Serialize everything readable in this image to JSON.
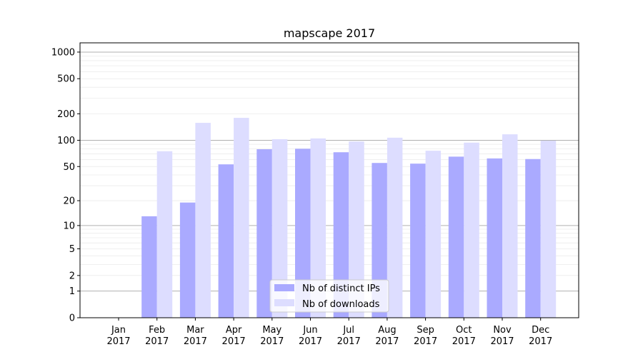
{
  "chart_data": {
    "type": "bar",
    "title": "mapscape 2017",
    "xlabel": "",
    "ylabel": "",
    "yscale": "symlog (log10(1+y))",
    "ylim": [
      0,
      1200
    ],
    "yticks": [
      0,
      1,
      2,
      5,
      10,
      20,
      50,
      100,
      200,
      500,
      1000
    ],
    "grid": true,
    "legend_position": "bottom-center",
    "categories": [
      "Jan\n2017",
      "Feb\n2017",
      "Mar\n2017",
      "Apr\n2017",
      "May\n2017",
      "Jun\n2017",
      "Jul\n2017",
      "Aug\n2017",
      "Sep\n2017",
      "Oct\n2017",
      "Nov\n2017",
      "Dec\n2017"
    ],
    "series": [
      {
        "name": "Nb of distinct IPs",
        "color": "#aaaaff",
        "values": [
          0,
          13,
          19,
          53,
          79,
          80,
          73,
          55,
          54,
          65,
          62,
          61
        ]
      },
      {
        "name": "Nb of downloads",
        "color": "#ddddff",
        "values": [
          0,
          75,
          158,
          180,
          103,
          105,
          97,
          107,
          76,
          94,
          117,
          99
        ]
      }
    ]
  }
}
